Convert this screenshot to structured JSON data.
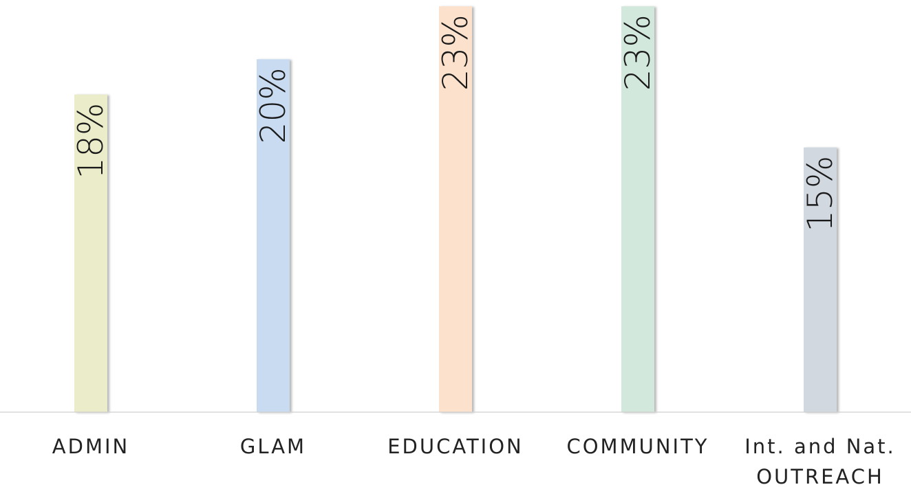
{
  "chart_data": {
    "type": "bar",
    "categories": [
      "ADMIN",
      "GLAM",
      "EDUCATION",
      "COMMUNITY",
      "Int. and Nat. OUTREACH"
    ],
    "category_lines": [
      [
        "ADMIN"
      ],
      [
        "GLAM"
      ],
      [
        "EDUCATION"
      ],
      [
        "COMMUNITY"
      ],
      [
        "Int. and Nat.",
        "OUTREACH"
      ]
    ],
    "values": [
      18,
      20,
      23,
      23,
      15
    ],
    "labels": [
      "18%",
      "20%",
      "23%",
      "23%",
      "15%"
    ],
    "colors": [
      "#ebecc9",
      "#c8dbf1",
      "#fce2cc",
      "#d3e8dd",
      "#d2d8e0"
    ],
    "ylim": [
      0,
      23.2
    ],
    "grid": false,
    "legend": "none"
  }
}
